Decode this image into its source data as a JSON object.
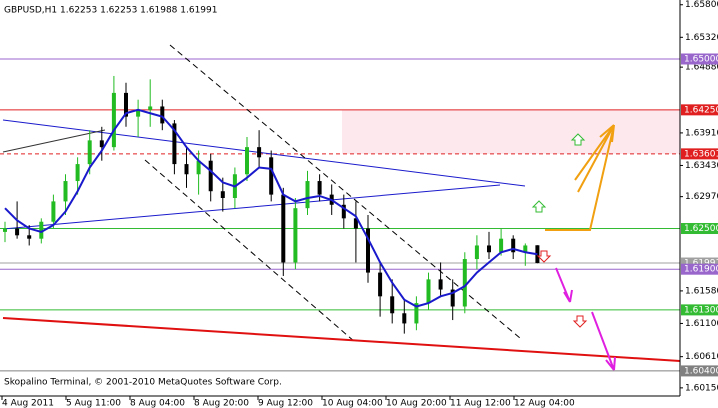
{
  "chart_data": {
    "type": "candlestick",
    "title": "GBPUSD,H1  1.62253 1.62253 1.61988 1.61991",
    "footer": "Skopalino Terminal, © 2001-2010 MetaQuotes Software Corp.",
    "x_labels": [
      "4 Aug 2011",
      "5 Aug 11:00",
      "8 Aug 04:00",
      "8 Aug 20:00",
      "9 Aug 12:00",
      "10 Aug 04:00",
      "10 Aug 20:00",
      "11 Aug 12:00",
      "12 Aug 04:00"
    ],
    "ylim": [
      1.6003,
      1.6587
    ],
    "yticks": [
      {
        "value": 1.658,
        "label": "1.65800"
      },
      {
        "value": 1.6532,
        "label": "1.65320"
      },
      {
        "value": 1.6488,
        "label": "1.64880"
      },
      {
        "value": 1.6391,
        "label": "1.63910"
      },
      {
        "value": 1.6343,
        "label": "1.63430"
      },
      {
        "value": 1.6297,
        "label": "1.62970"
      },
      {
        "value": 1.6158,
        "label": "1.61580"
      },
      {
        "value": 1.611,
        "label": "1.61100"
      },
      {
        "value": 1.6061,
        "label": "1.60610"
      },
      {
        "value": 1.6015,
        "label": "1.60150"
      }
    ],
    "levels": [
      {
        "value": 1.65,
        "label": "1.65000",
        "color": "#9966cc"
      },
      {
        "value": 1.6425,
        "label": "1.64250",
        "color": "#e02020"
      },
      {
        "value": 1.63601,
        "label": "1.63601",
        "color": "#e02020",
        "style": "dashed"
      },
      {
        "value": 1.625,
        "label": "1.62500",
        "color": "#33bb33"
      },
      {
        "value": 1.61991,
        "label": "1.61991",
        "color": "#a0a0a0"
      },
      {
        "value": 1.619,
        "label": "1.61900",
        "color": "#9966cc"
      },
      {
        "value": 1.613,
        "label": "1.61300",
        "color": "#33bb33"
      },
      {
        "value": 1.604,
        "label": "1.60400",
        "color": "#808080"
      }
    ],
    "up_color": "#22bb22",
    "down_color": "#000000",
    "open": [
      1.6245,
      1.625,
      1.624,
      1.6235,
      1.626,
      1.629,
      1.632,
      1.6345,
      1.638,
      1.637,
      1.645,
      1.6415,
      1.6425,
      1.643,
      1.6405,
      1.6345,
      1.633,
      1.635,
      1.6305,
      1.6295,
      1.633,
      1.637,
      1.6355,
      1.63,
      1.62,
      1.628,
      1.632,
      1.63,
      1.6285,
      1.6265,
      1.625,
      1.6185,
      1.615,
      1.6125,
      1.611,
      1.614,
      1.6175,
      1.616,
      1.6135,
      1.6205,
      1.6225,
      1.6215,
      1.6235,
      1.6215,
      1.62253
    ],
    "high": [
      1.626,
      1.629,
      1.6255,
      1.6265,
      1.63,
      1.633,
      1.6355,
      1.6395,
      1.64,
      1.6475,
      1.6465,
      1.644,
      1.647,
      1.644,
      1.641,
      1.637,
      1.6365,
      1.636,
      1.6325,
      1.634,
      1.6385,
      1.6395,
      1.6365,
      1.631,
      1.6295,
      1.6335,
      1.633,
      1.6315,
      1.63,
      1.629,
      1.627,
      1.62,
      1.6175,
      1.6145,
      1.615,
      1.6185,
      1.62,
      1.6175,
      1.6215,
      1.624,
      1.6245,
      1.625,
      1.624,
      1.6228,
      1.62253
    ],
    "low": [
      1.623,
      1.6235,
      1.6225,
      1.6228,
      1.625,
      1.627,
      1.63,
      1.633,
      1.635,
      1.6365,
      1.64,
      1.6385,
      1.64,
      1.6395,
      1.633,
      1.631,
      1.63,
      1.629,
      1.6275,
      1.628,
      1.632,
      1.634,
      1.629,
      1.618,
      1.619,
      1.627,
      1.629,
      1.627,
      1.625,
      1.62,
      1.617,
      1.612,
      1.611,
      1.6095,
      1.61,
      1.613,
      1.615,
      1.6115,
      1.6125,
      1.619,
      1.6205,
      1.621,
      1.6205,
      1.6195,
      1.61988
    ],
    "close": [
      1.625,
      1.624,
      1.6235,
      1.626,
      1.629,
      1.632,
      1.6345,
      1.638,
      1.637,
      1.645,
      1.6415,
      1.6425,
      1.643,
      1.6405,
      1.6345,
      1.633,
      1.635,
      1.6305,
      1.6295,
      1.633,
      1.637,
      1.6355,
      1.63,
      1.62,
      1.628,
      1.632,
      1.63,
      1.6285,
      1.6265,
      1.625,
      1.6185,
      1.615,
      1.6125,
      1.611,
      1.614,
      1.6175,
      1.616,
      1.6135,
      1.6205,
      1.6225,
      1.6215,
      1.6235,
      1.6215,
      1.6225,
      1.61991
    ],
    "ma": {
      "color": "#1a1acc",
      "values": [
        1.628,
        1.6262,
        1.625,
        1.6245,
        1.6255,
        1.6275,
        1.6305,
        1.634,
        1.6365,
        1.6395,
        1.642,
        1.6425,
        1.642,
        1.6415,
        1.6395,
        1.637,
        1.635,
        1.6335,
        1.6318,
        1.6312,
        1.6325,
        1.634,
        1.6338,
        1.63,
        1.629,
        1.6295,
        1.6298,
        1.6292,
        1.628,
        1.6268,
        1.6235,
        1.62,
        1.617,
        1.6145,
        1.6135,
        1.614,
        1.615,
        1.6155,
        1.6165,
        1.6185,
        1.62,
        1.6215,
        1.622,
        1.6215,
        1.6212
      ]
    }
  }
}
